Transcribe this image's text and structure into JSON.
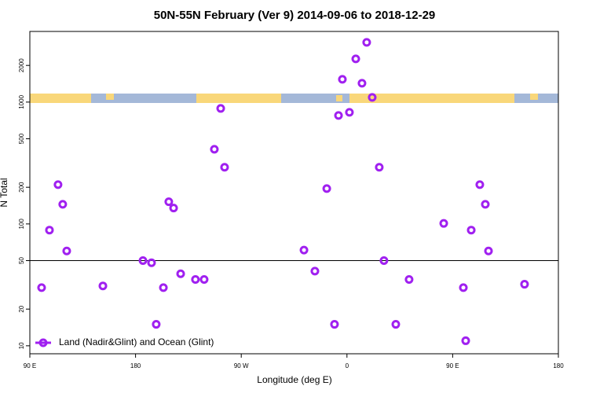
{
  "chart_data": {
    "type": "scatter",
    "title": "50N-55N February (Ver 9)   2014-09-06 to 2018-12-29",
    "xlabel": "Longitude (deg E)",
    "ylabel": "N Total",
    "series": [
      {
        "name": "Land (Nadir&Glint) and Ocean (Glint)",
        "color": "#a020f0",
        "x": [
          100,
          106.7,
          114,
          118,
          121.4,
          152.2,
          186.3,
          193.6,
          197.6,
          203.7,
          208.3,
          212.4,
          218.4,
          231,
          238.4,
          247.1,
          252.5,
          255.8,
          323.4,
          332.7,
          342.8,
          349.4,
          352.8,
          356.1,
          362.1,
          367.5,
          372.8,
          376.8,
          381.5,
          387.5,
          391.5,
          401.6,
          412.9,
          442.4,
          459.1,
          461.1,
          465.8,
          473.1,
          477.8,
          480.5,
          511.2
        ],
        "values": [
          30,
          89,
          210,
          145,
          60,
          31,
          50,
          48,
          15,
          30,
          152,
          135,
          39,
          35,
          35,
          410,
          887,
          292,
          61,
          41,
          195,
          15,
          777,
          1538,
          824,
          2264,
          1428,
          3090,
          1093,
          292,
          50,
          15,
          35,
          101,
          30,
          11,
          89,
          210,
          145,
          60,
          32
        ]
      }
    ],
    "xlim": [
      90,
      540
    ],
    "xticks": [
      {
        "value": 90,
        "label": "90 E"
      },
      {
        "value": 180,
        "label": "180"
      },
      {
        "value": 270,
        "label": "90 W"
      },
      {
        "value": 360,
        "label": "0"
      },
      {
        "value": 450,
        "label": "90 E"
      },
      {
        "value": 540,
        "label": "180"
      }
    ],
    "ylim": [
      8.6,
      3800
    ],
    "yticks": [
      10,
      20,
      50,
      100,
      200,
      500,
      1000,
      2000
    ],
    "ylog": true,
    "hline": 50,
    "legend": "lower left"
  }
}
